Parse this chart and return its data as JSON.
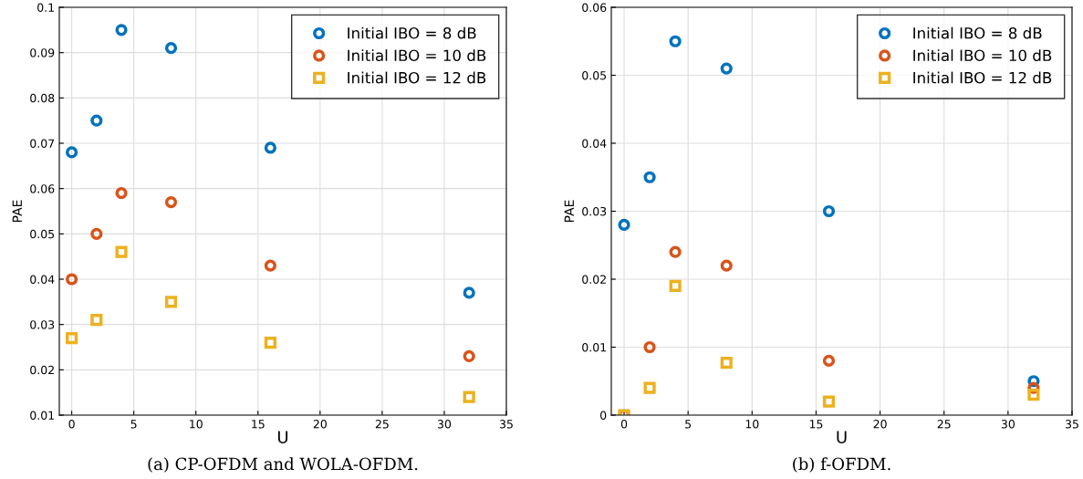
{
  "chart_data": [
    {
      "type": "scatter",
      "xlabel": "U",
      "ylabel": "PAE",
      "x": [
        0,
        2,
        4,
        8,
        16,
        32
      ],
      "xlim": [
        -1,
        35
      ],
      "xticks": [
        0,
        5,
        10,
        15,
        20,
        25,
        30,
        35
      ],
      "ylim": [
        0.01,
        0.1
      ],
      "yticks": [
        0.01,
        0.02,
        0.03,
        0.04,
        0.05,
        0.06,
        0.07,
        0.08,
        0.09,
        0.1
      ],
      "grid": true,
      "legend": "top right",
      "series": [
        {
          "name": "Initial IBO = 8 dB",
          "color": "#0072bd",
          "marker": "circle",
          "values": [
            0.068,
            0.075,
            0.095,
            0.091,
            0.069,
            0.037
          ]
        },
        {
          "name": "Initial IBO = 10 dB",
          "color": "#d95319",
          "marker": "circle",
          "values": [
            0.04,
            0.05,
            0.059,
            0.057,
            0.043,
            0.023
          ]
        },
        {
          "name": "Initial IBO = 12 dB",
          "color": "#edb120",
          "marker": "square",
          "values": [
            0.027,
            0.031,
            0.046,
            0.035,
            0.026,
            0.014
          ]
        }
      ],
      "annotations": [
        "(a) CP-OFDM and WOLA-OFDM."
      ]
    },
    {
      "type": "scatter",
      "xlabel": "U",
      "ylabel": "PAE",
      "x": [
        0,
        2,
        4,
        8,
        16,
        32
      ],
      "xlim": [
        -1,
        35
      ],
      "xticks": [
        0,
        5,
        10,
        15,
        20,
        25,
        30,
        35
      ],
      "ylim": [
        0,
        0.06
      ],
      "yticks": [
        0,
        0.01,
        0.02,
        0.03,
        0.04,
        0.05,
        0.06
      ],
      "grid": true,
      "legend": "top right",
      "series": [
        {
          "name": "Initial IBO = 8 dB",
          "color": "#0072bd",
          "marker": "circle",
          "values": [
            0.028,
            0.035,
            0.055,
            0.051,
            0.03,
            0.005
          ]
        },
        {
          "name": "Initial IBO = 10 dB",
          "color": "#d95319",
          "marker": "circle",
          "values": [
            0,
            0.01,
            0.024,
            0.022,
            0.008,
            0.004
          ]
        },
        {
          "name": "Initial IBO = 12 dB",
          "color": "#edb120",
          "marker": "square",
          "values": [
            0,
            0.004,
            0.019,
            0.0077,
            0.002,
            0.003
          ]
        }
      ],
      "annotations": [
        "(b) f-OFDM."
      ]
    }
  ]
}
